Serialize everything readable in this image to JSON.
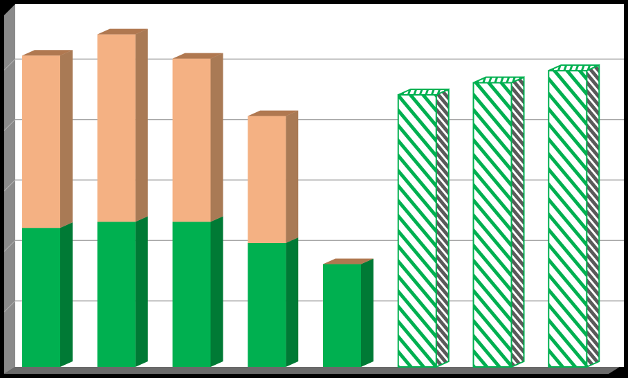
{
  "chart_data": {
    "type": "bar",
    "stacked": true,
    "three_d": true,
    "title": "",
    "xlabel": "",
    "ylabel": "",
    "ylim": [
      0,
      6
    ],
    "grid": true,
    "legend": "none",
    "categories": [
      "",
      "",
      "",
      "",
      "",
      "",
      "",
      ""
    ],
    "series": [
      {
        "values": [
          2.3,
          2.4,
          2.4,
          2.05,
          1.7,
          0,
          0,
          0
        ],
        "color": "#00B050",
        "side_color": "#007A35",
        "top_color": "#B07850"
      },
      {
        "values": [
          2.85,
          3.1,
          2.7,
          2.1,
          0,
          0,
          0,
          0
        ],
        "color": "#F4B183",
        "side_color": "#A97A55",
        "top_color": "#B07850"
      },
      {
        "values": [
          0,
          0,
          0,
          0,
          0,
          4.5,
          4.7,
          4.9
        ],
        "pattern": "diagonal-stripes",
        "color": "#00B050",
        "pattern_background": "#FFFFFF"
      }
    ]
  }
}
